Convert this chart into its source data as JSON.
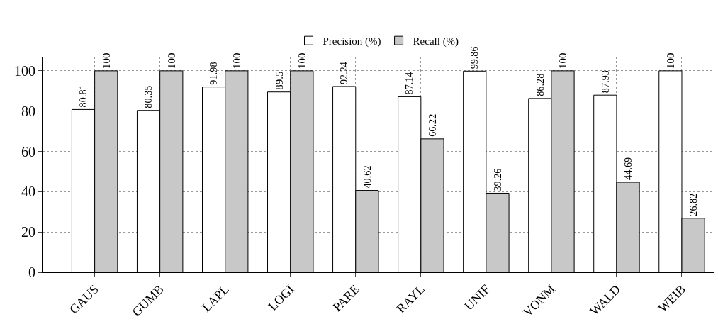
{
  "chart_data": {
    "type": "bar",
    "categories": [
      "GAUS",
      "GUMB",
      "LAPL",
      "LOGI",
      "PARE",
      "RAYL",
      "UNIF",
      "VONM",
      "WALD",
      "WEIB"
    ],
    "series": [
      {
        "name": "Precision (%)",
        "color": "#ffffff",
        "values": [
          80.81,
          80.35,
          91.98,
          89.5,
          92.24,
          87.14,
          99.86,
          86.28,
          87.93,
          100
        ]
      },
      {
        "name": "Recall (%)",
        "color": "#c8c8c8",
        "values": [
          100,
          100,
          100,
          100,
          40.62,
          66.22,
          39.26,
          100,
          44.69,
          26.82
        ]
      }
    ],
    "ylim": [
      0,
      107
    ],
    "yticks": [
      0,
      20,
      40,
      60,
      80,
      100
    ],
    "grid": true,
    "legend": "top",
    "data_labels": true
  }
}
